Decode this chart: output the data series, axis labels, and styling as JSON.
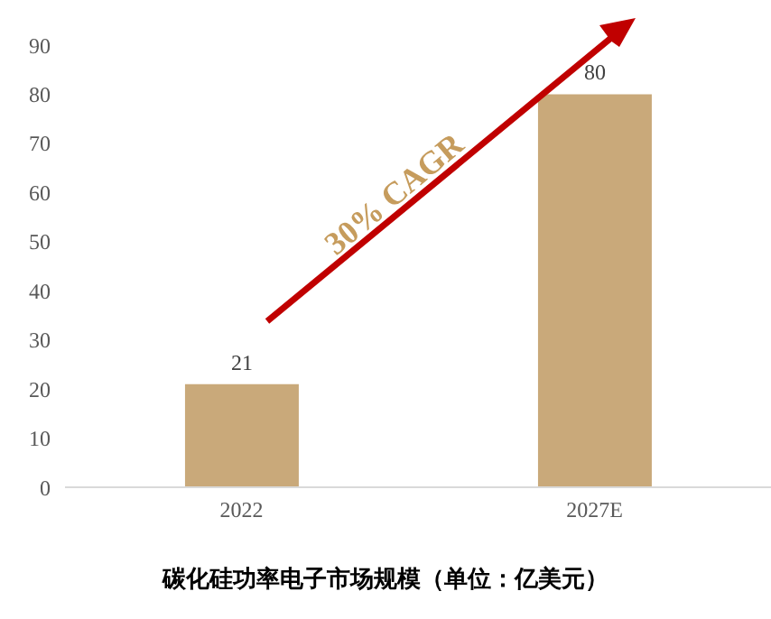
{
  "chart_data": {
    "type": "bar",
    "title": "碳化硅功率电子市场规模（单位：亿美元）",
    "categories": [
      "2022",
      "2027E"
    ],
    "values": [
      21,
      80
    ],
    "color": "#c9a97a",
    "ylim": [
      0,
      90
    ],
    "yticks": [
      0,
      10,
      20,
      30,
      40,
      50,
      60,
      70,
      80,
      90
    ],
    "data_labels": true,
    "annotations": [
      "30% CAGR"
    ]
  }
}
